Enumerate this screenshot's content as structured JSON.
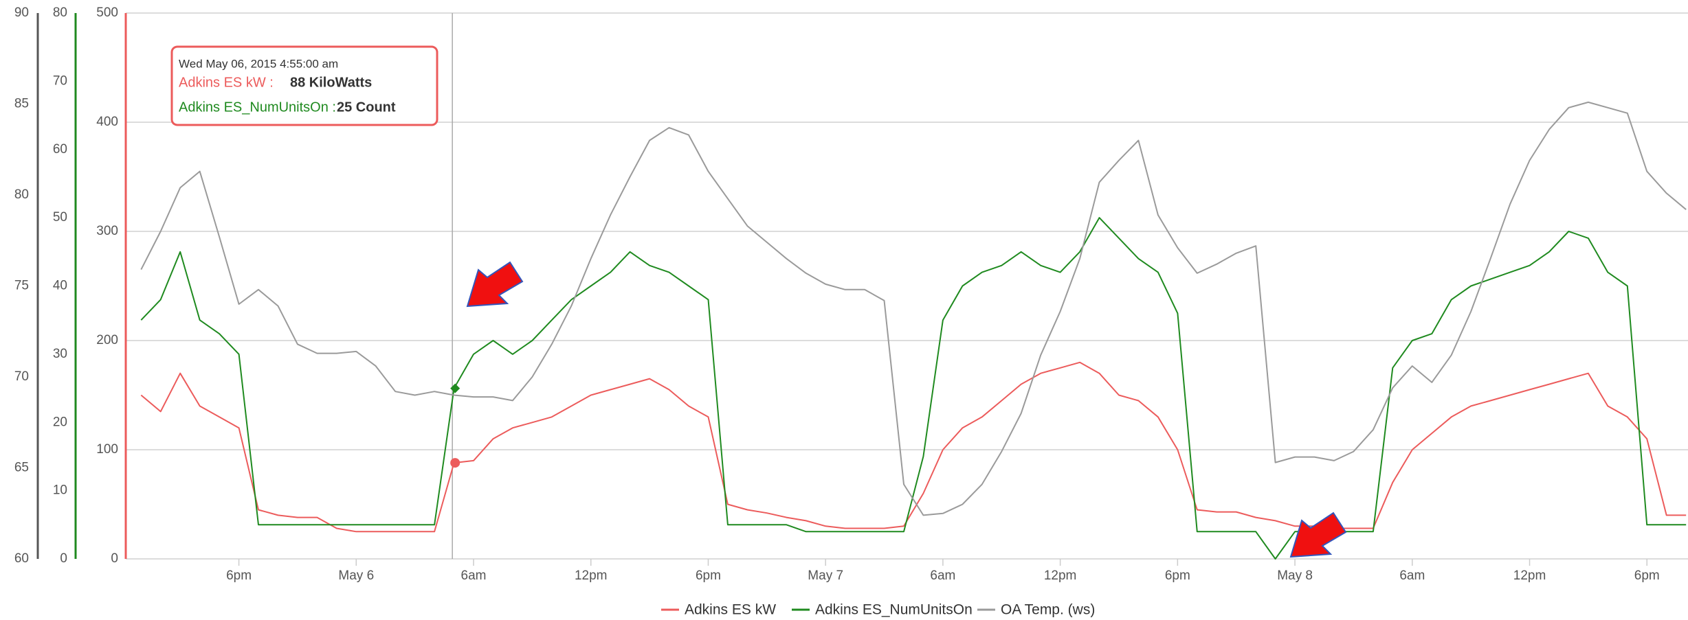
{
  "chart_data": {
    "type": "line",
    "x": [
      "2015-05-05 13:00",
      "2015-05-05 14:00",
      "2015-05-05 15:00",
      "2015-05-05 16:00",
      "2015-05-05 17:00",
      "2015-05-05 18:00",
      "2015-05-05 19:00",
      "2015-05-05 20:00",
      "2015-05-05 21:00",
      "2015-05-05 22:00",
      "2015-05-05 23:00",
      "2015-05-06 00:00",
      "2015-05-06 01:00",
      "2015-05-06 02:00",
      "2015-05-06 03:00",
      "2015-05-06 04:00",
      "2015-05-06 05:00",
      "2015-05-06 06:00",
      "2015-05-06 07:00",
      "2015-05-06 08:00",
      "2015-05-06 09:00",
      "2015-05-06 10:00",
      "2015-05-06 11:00",
      "2015-05-06 12:00",
      "2015-05-06 13:00",
      "2015-05-06 14:00",
      "2015-05-06 15:00",
      "2015-05-06 16:00",
      "2015-05-06 17:00",
      "2015-05-06 18:00",
      "2015-05-06 19:00",
      "2015-05-06 20:00",
      "2015-05-06 21:00",
      "2015-05-06 22:00",
      "2015-05-06 23:00",
      "2015-05-07 00:00",
      "2015-05-07 01:00",
      "2015-05-07 02:00",
      "2015-05-07 03:00",
      "2015-05-07 04:00",
      "2015-05-07 05:00",
      "2015-05-07 06:00",
      "2015-05-07 07:00",
      "2015-05-07 08:00",
      "2015-05-07 09:00",
      "2015-05-07 10:00",
      "2015-05-07 11:00",
      "2015-05-07 12:00",
      "2015-05-07 13:00",
      "2015-05-07 14:00",
      "2015-05-07 15:00",
      "2015-05-07 16:00",
      "2015-05-07 17:00",
      "2015-05-07 18:00",
      "2015-05-07 19:00",
      "2015-05-07 20:00",
      "2015-05-07 21:00",
      "2015-05-07 22:00",
      "2015-05-07 23:00",
      "2015-05-08 00:00",
      "2015-05-08 01:00",
      "2015-05-08 02:00",
      "2015-05-08 03:00",
      "2015-05-08 04:00",
      "2015-05-08 05:00",
      "2015-05-08 06:00",
      "2015-05-08 07:00",
      "2015-05-08 08:00",
      "2015-05-08 09:00",
      "2015-05-08 10:00",
      "2015-05-08 11:00",
      "2015-05-08 12:00",
      "2015-05-08 13:00",
      "2015-05-08 14:00",
      "2015-05-08 15:00",
      "2015-05-08 16:00",
      "2015-05-08 17:00",
      "2015-05-08 18:00",
      "2015-05-08 19:00",
      "2015-05-08 20:00"
    ],
    "series": [
      {
        "name": "Adkins ES kW",
        "color": "#ec5b5b",
        "axis": "y",
        "values": [
          150,
          135,
          170,
          140,
          130,
          120,
          45,
          40,
          38,
          38,
          28,
          25,
          25,
          25,
          25,
          25,
          88,
          90,
          110,
          120,
          125,
          130,
          140,
          150,
          155,
          160,
          165,
          155,
          140,
          130,
          50,
          45,
          42,
          38,
          35,
          30,
          28,
          28,
          28,
          30,
          60,
          100,
          120,
          130,
          145,
          160,
          170,
          175,
          180,
          170,
          150,
          145,
          130,
          100,
          45,
          43,
          43,
          38,
          35,
          30,
          30,
          28,
          28,
          28,
          70,
          100,
          115,
          130,
          140,
          145,
          150,
          155,
          160,
          165,
          170,
          140,
          130,
          110,
          40,
          40
        ]
      },
      {
        "name": "Adkins ES_NumUnitsOn",
        "color": "#1f8a1f",
        "axis": "y2",
        "values": [
          35,
          38,
          45,
          35,
          33,
          30,
          5,
          5,
          5,
          5,
          5,
          5,
          5,
          5,
          5,
          5,
          25,
          30,
          32,
          30,
          32,
          35,
          38,
          40,
          42,
          45,
          43,
          42,
          40,
          38,
          5,
          5,
          5,
          5,
          4,
          4,
          4,
          4,
          4,
          4,
          15,
          35,
          40,
          42,
          43,
          45,
          43,
          42,
          45,
          50,
          47,
          44,
          42,
          36,
          4,
          4,
          4,
          4,
          0,
          4,
          4,
          4,
          4,
          4,
          28,
          32,
          33,
          38,
          40,
          41,
          42,
          43,
          45,
          48,
          47,
          42,
          40,
          5,
          5,
          5
        ]
      },
      {
        "name": "OA Temp. (ws)",
        "color": "#9a9a9a",
        "axis": "y3",
        "values": [
          75.9,
          78,
          80.4,
          81.3,
          77.7,
          74,
          74.8,
          73.9,
          71.8,
          71.3,
          71.3,
          71.4,
          70.6,
          69.2,
          69,
          69.2,
          69,
          68.9,
          68.9,
          68.7,
          70,
          71.8,
          73.9,
          76.5,
          78.9,
          81,
          83,
          83.7,
          83.3,
          81.3,
          79.8,
          78.3,
          77.4,
          76.5,
          75.7,
          75.1,
          74.8,
          74.8,
          74.2,
          64.1,
          62.4,
          62.5,
          63,
          64.1,
          65.9,
          68,
          71.2,
          73.6,
          76.5,
          80.7,
          81.9,
          83,
          78.9,
          77.1,
          75.7,
          76.2,
          76.8,
          77.2,
          65.3,
          65.6,
          65.6,
          65.4,
          65.9,
          67.1,
          69.4,
          70.6,
          69.7,
          71.2,
          73.6,
          76.5,
          79.5,
          81.9,
          83.6,
          84.8,
          85.1,
          84.8,
          84.5,
          81.3,
          80.1,
          79.2
        ]
      }
    ],
    "xlim": [
      "2015-05-05 12:13",
      "2015-05-08 20:06"
    ],
    "xticks": [
      {
        "value": "2015-05-05 18:00",
        "label": "6pm"
      },
      {
        "value": "2015-05-06 00:00",
        "label": "May 6"
      },
      {
        "value": "2015-05-06 06:00",
        "label": "6am"
      },
      {
        "value": "2015-05-06 12:00",
        "label": "12pm"
      },
      {
        "value": "2015-05-06 18:00",
        "label": "6pm"
      },
      {
        "value": "2015-05-07 00:00",
        "label": "May 7"
      },
      {
        "value": "2015-05-07 06:00",
        "label": "6am"
      },
      {
        "value": "2015-05-07 12:00",
        "label": "12pm"
      },
      {
        "value": "2015-05-07 18:00",
        "label": "6pm"
      },
      {
        "value": "2015-05-08 00:00",
        "label": "May 8"
      },
      {
        "value": "2015-05-08 06:00",
        "label": "6am"
      },
      {
        "value": "2015-05-08 12:00",
        "label": "12pm"
      },
      {
        "value": "2015-05-08 18:00",
        "label": "6pm"
      }
    ],
    "ylim": [
      0,
      500
    ],
    "yticks": [
      0,
      100,
      200,
      300,
      400,
      500
    ],
    "y2lim": [
      0,
      80
    ],
    "y2ticks": [
      0,
      10,
      20,
      30,
      40,
      50,
      60,
      70,
      80
    ],
    "y3lim": [
      60,
      90
    ],
    "y3ticks": [
      60,
      65,
      70,
      75,
      80,
      85,
      90
    ],
    "grid": true,
    "legend": "bottom",
    "tooltip": {
      "x": "2015-05-06 04:55",
      "title": "Wed May 06, 2015 4:55:00 am",
      "rows": [
        {
          "name": "Adkins ES kW :",
          "value": 88,
          "value_label": "88 KiloWatts"
        },
        {
          "name": "Adkins ES_NumUnitsOn :",
          "value": 25,
          "value_label": "25 Count"
        }
      ]
    }
  }
}
